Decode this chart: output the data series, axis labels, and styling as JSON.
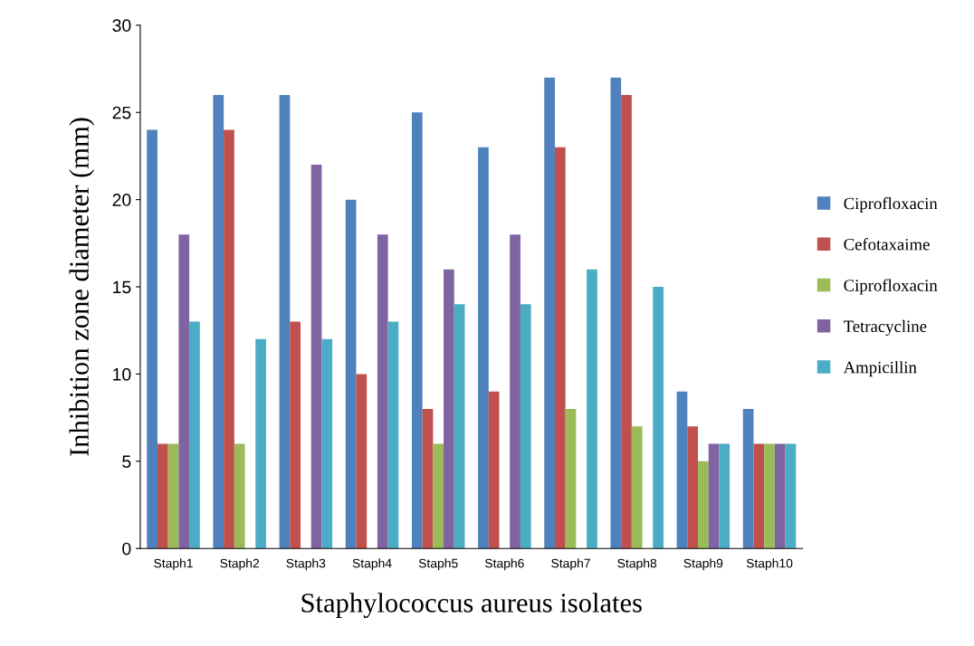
{
  "chart_data": {
    "type": "bar",
    "xlabel": "Staphylococcus aureus isolates",
    "ylabel": "Inhibition zone diameter (mm)",
    "categories": [
      "Staph1",
      "Staph2",
      "Staph3",
      "Staph4",
      "Staph5",
      "Staph6",
      "Staph7",
      "Staph8",
      "Staph9",
      "Staph10"
    ],
    "series": [
      {
        "name": "Ciprofloxacin",
        "color": "#4f81bd",
        "values": [
          24,
          26,
          26,
          20,
          25,
          23,
          27,
          27,
          9,
          8
        ]
      },
      {
        "name": "Cefotaxaime",
        "color": "#c0504d",
        "values": [
          6,
          24,
          13,
          10,
          8,
          9,
          23,
          26,
          7,
          6
        ]
      },
      {
        "name": "Ciprofloxacin",
        "color": "#9bbb59",
        "values": [
          6,
          6,
          null,
          null,
          6,
          null,
          8,
          7,
          5,
          6
        ]
      },
      {
        "name": "Tetracycline",
        "color": "#8064a2",
        "values": [
          18,
          null,
          22,
          18,
          16,
          18,
          null,
          null,
          6,
          6
        ]
      },
      {
        "name": "Ampicillin",
        "color": "#4bacc6",
        "values": [
          13,
          12,
          12,
          13,
          14,
          14,
          16,
          15,
          6,
          6
        ]
      }
    ],
    "ylim": [
      0,
      30
    ],
    "yticks": [
      0,
      5,
      10,
      15,
      20,
      25,
      30
    ],
    "grid": false,
    "legend": "right"
  }
}
